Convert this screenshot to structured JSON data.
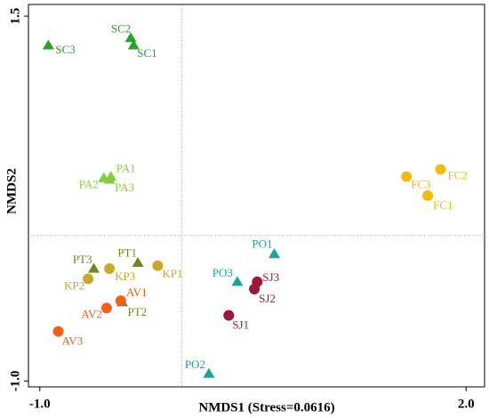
{
  "chart_data": {
    "type": "scatter",
    "x_label": "NMDS1 (Stress=0.0616)",
    "y_label": "NMDS2",
    "xlim": [
      -1.08,
      2.13
    ],
    "ylim": [
      -1.04,
      1.58
    ],
    "xticks": [
      {
        "value": -1.0,
        "label": "-1.0"
      },
      {
        "value": 2.0,
        "label": "2.0"
      }
    ],
    "yticks": [
      {
        "value": -1.0,
        "label": "-1.0"
      },
      1.5
    ],
    "labels": [
      "SC3",
      "SC2",
      "SC1",
      "PA1",
      "PA2",
      "PA3",
      "FC3",
      "FC2",
      "FC1",
      "PT3",
      "PT1",
      "PT2",
      "KP2",
      "KP3",
      "KP1",
      "AV1",
      "AV2",
      "AV3",
      "PO1",
      "PO3",
      "PO2",
      "SJ3",
      "SJ2",
      "SJ1"
    ],
    "x": [
      -0.94,
      -0.36,
      -0.34,
      -0.5,
      -0.55,
      -0.51,
      1.58,
      1.82,
      1.73,
      -0.62,
      -0.31,
      -0.42,
      -0.66,
      -0.51,
      -0.17,
      -0.43,
      -0.53,
      -0.87,
      0.65,
      0.39,
      0.19,
      0.53,
      0.51,
      0.33
    ],
    "y": [
      1.3,
      1.35,
      1.3,
      0.4,
      0.39,
      0.38,
      0.4,
      0.45,
      0.27,
      -0.23,
      -0.19,
      -0.46,
      -0.3,
      -0.23,
      -0.21,
      -0.45,
      -0.5,
      -0.66,
      -0.13,
      -0.32,
      -0.95,
      -0.32,
      -0.37,
      -0.55
    ],
    "markers": [
      "triangle",
      "triangle",
      "triangle",
      "triangle",
      "triangle",
      "triangle",
      "circle",
      "circle",
      "circle",
      "triangle",
      "triangle",
      "triangle",
      "circle",
      "circle",
      "circle",
      "circle",
      "circle",
      "circle",
      "triangle",
      "triangle",
      "triangle",
      "circle",
      "circle",
      "circle"
    ],
    "colors": [
      "#2aa12a",
      "#2aa12a",
      "#2aa12a",
      "#86cf3c",
      "#86cf3c",
      "#86cf3c",
      "#f7b90f",
      "#f7b90f",
      "#f7b90f",
      "#6e8a1e",
      "#6e8a1e",
      "#6e8a1e",
      "#c9a92c",
      "#c9a92c",
      "#c9a92c",
      "#f06018",
      "#f06018",
      "#f06018",
      "#17a595",
      "#17a595",
      "#17a595",
      "#9c1838",
      "#9c1838",
      "#9c1838"
    ]
  }
}
